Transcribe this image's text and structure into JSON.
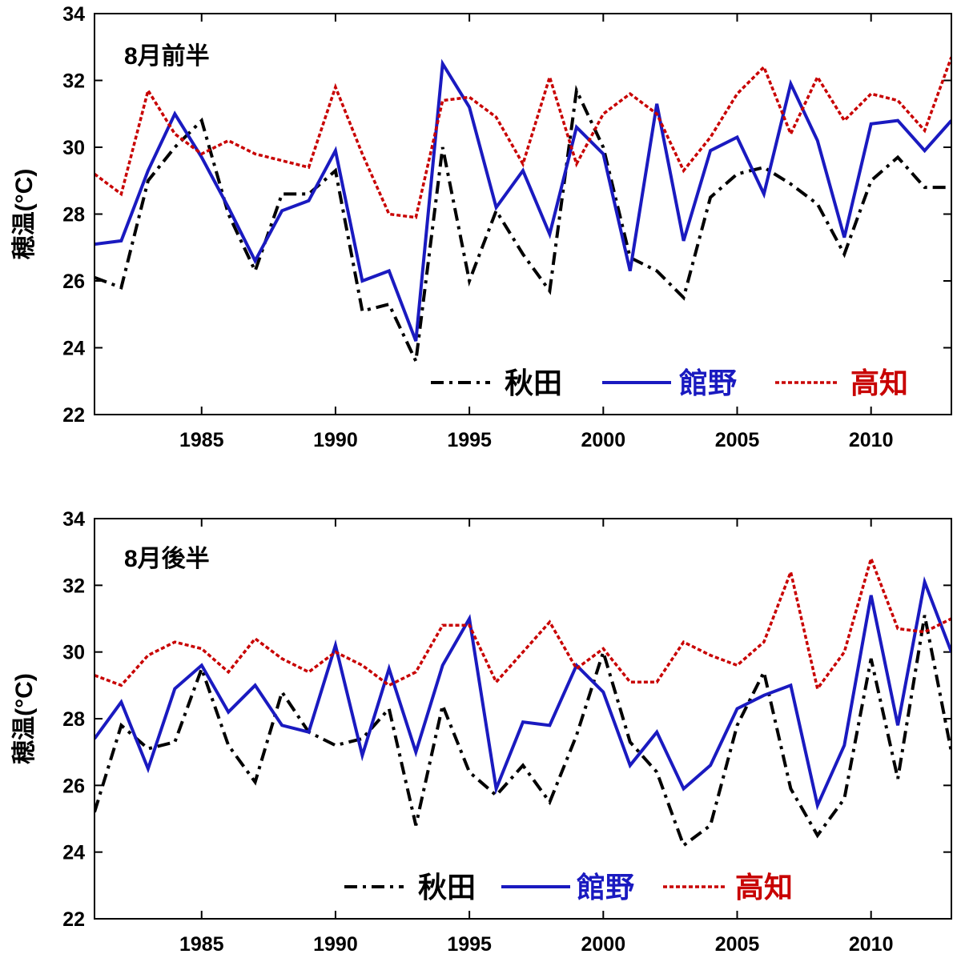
{
  "chart_data": [
    {
      "type": "line",
      "title": "8月前半",
      "ylabel": "穂温(°C)",
      "xlabel": "",
      "xlim": [
        1981,
        2013
      ],
      "ylim": [
        22,
        34
      ],
      "xticks": [
        1985,
        1990,
        1995,
        2000,
        2005,
        2010
      ],
      "yticks": [
        22,
        24,
        26,
        28,
        30,
        32,
        34
      ],
      "x": [
        1981,
        1982,
        1983,
        1984,
        1985,
        1986,
        1987,
        1988,
        1989,
        1990,
        1991,
        1992,
        1993,
        1994,
        1995,
        1996,
        1997,
        1998,
        1999,
        2000,
        2001,
        2002,
        2003,
        2004,
        2005,
        2006,
        2007,
        2008,
        2009,
        2010,
        2011,
        2012,
        2013
      ],
      "legend_position": "bottom-right",
      "series": [
        {
          "name": "秋田",
          "color": "#000000",
          "style": "dashdot",
          "values": [
            26.1,
            25.8,
            29.0,
            30.0,
            30.8,
            28.0,
            26.3,
            28.6,
            28.6,
            29.3,
            25.1,
            25.3,
            23.6,
            30.0,
            26.0,
            28.1,
            26.8,
            25.7,
            31.7,
            30.0,
            26.7,
            26.3,
            25.5,
            28.5,
            29.2,
            29.4,
            28.9,
            28.3,
            26.8,
            29.0,
            29.7,
            28.8,
            28.8
          ]
        },
        {
          "name": "館野",
          "color": "#1a1ac0",
          "style": "solid",
          "values": [
            27.1,
            27.2,
            29.3,
            31.0,
            29.7,
            28.2,
            26.6,
            28.1,
            28.4,
            29.9,
            26.0,
            26.3,
            24.2,
            32.5,
            31.2,
            28.2,
            29.3,
            27.4,
            30.6,
            29.8,
            26.3,
            31.3,
            27.2,
            29.9,
            30.3,
            28.6,
            31.9,
            30.2,
            27.3,
            30.7,
            30.8,
            29.9,
            30.8
          ]
        },
        {
          "name": "高知",
          "color": "#c80000",
          "style": "dotted",
          "values": [
            29.2,
            28.6,
            31.7,
            30.4,
            29.8,
            30.2,
            29.8,
            29.6,
            29.4,
            31.8,
            29.8,
            28.0,
            27.9,
            31.4,
            31.5,
            30.9,
            29.5,
            32.1,
            29.5,
            31.0,
            31.6,
            31.0,
            29.3,
            30.3,
            31.6,
            32.4,
            30.4,
            32.1,
            30.8,
            31.6,
            31.4,
            30.5,
            32.7
          ]
        }
      ]
    },
    {
      "type": "line",
      "title": "8月後半",
      "ylabel": "穂温(°C)",
      "xlabel": "",
      "xlim": [
        1981,
        2013
      ],
      "ylim": [
        22,
        34
      ],
      "xticks": [
        1985,
        1990,
        1995,
        2000,
        2005,
        2010
      ],
      "yticks": [
        22,
        24,
        26,
        28,
        30,
        32,
        34
      ],
      "x": [
        1981,
        1982,
        1983,
        1984,
        1985,
        1986,
        1987,
        1988,
        1989,
        1990,
        1991,
        1992,
        1993,
        1994,
        1995,
        1996,
        1997,
        1998,
        1999,
        2000,
        2001,
        2002,
        2003,
        2004,
        2005,
        2006,
        2007,
        2008,
        2009,
        2010,
        2011,
        2012,
        2013
      ],
      "legend_position": "bottom-center",
      "series": [
        {
          "name": "秋田",
          "color": "#000000",
          "style": "dashdot",
          "values": [
            25.2,
            27.8,
            27.1,
            27.3,
            29.5,
            27.2,
            26.1,
            28.8,
            27.6,
            27.2,
            27.4,
            28.3,
            24.8,
            28.4,
            26.4,
            25.7,
            26.6,
            25.5,
            27.5,
            30.0,
            27.3,
            26.4,
            24.2,
            24.8,
            27.8,
            29.4,
            25.9,
            24.5,
            25.6,
            29.8,
            26.2,
            31.1,
            27.0
          ]
        },
        {
          "name": "館野",
          "color": "#1a1ac0",
          "style": "solid",
          "values": [
            27.4,
            28.5,
            26.5,
            28.9,
            29.6,
            28.2,
            29.0,
            27.8,
            27.6,
            30.2,
            26.9,
            29.5,
            27.0,
            29.6,
            31.0,
            25.9,
            27.9,
            27.8,
            29.6,
            28.8,
            26.6,
            27.6,
            25.9,
            26.6,
            28.3,
            28.7,
            29.0,
            25.4,
            27.2,
            31.7,
            27.8,
            32.1,
            30.0
          ]
        },
        {
          "name": "高知",
          "color": "#c80000",
          "style": "dotted",
          "values": [
            29.3,
            29.0,
            29.9,
            30.3,
            30.1,
            29.4,
            30.4,
            29.8,
            29.4,
            30.0,
            29.6,
            29.0,
            29.4,
            30.8,
            30.8,
            29.1,
            30.0,
            30.9,
            29.5,
            30.1,
            29.1,
            29.1,
            30.3,
            29.9,
            29.6,
            30.3,
            32.4,
            28.9,
            30.0,
            32.8,
            30.7,
            30.6,
            31.0
          ]
        }
      ]
    }
  ]
}
